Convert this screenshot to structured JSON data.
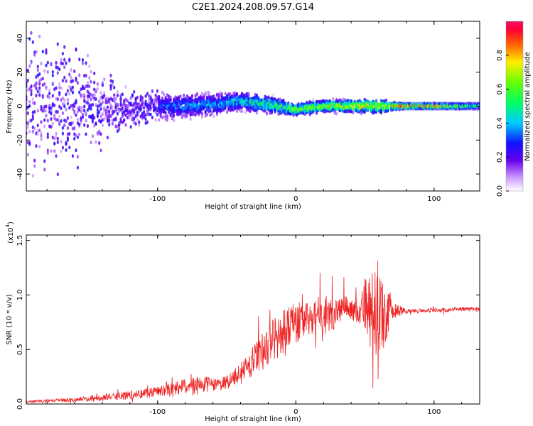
{
  "figure_title": "C2E1.2024.208.09.57.G14",
  "colors": {
    "snr_line": "#ee2222",
    "spectrum_core": "#cc1122"
  },
  "chart_data": [
    {
      "type": "heatmap",
      "panel": "spectrogram",
      "xlabel": "Height of straight line (km)",
      "ylabel": "Frequency (Hz)",
      "xlim": [
        -195,
        133
      ],
      "ylim": [
        -50,
        50
      ],
      "xticks": [
        -100,
        0,
        100
      ],
      "xtick_labels": [
        "-100",
        "0",
        "100"
      ],
      "yticks": [
        -40,
        -20,
        0,
        20,
        40
      ],
      "ytick_labels": [
        "-40",
        "-20",
        "0",
        "20",
        "40"
      ],
      "colorbar": {
        "label": "Normalized spectral amplitude",
        "range": [
          0,
          1
        ],
        "ticks": [
          0,
          0.2,
          0.4,
          0.6,
          0.8
        ],
        "tick_labels": [
          "0.0",
          "0.2",
          "0.4",
          "0.6",
          "0.8"
        ]
      },
      "description_points": {
        "height_km": [
          -195,
          -160,
          -120,
          -100,
          -80,
          -60,
          -40,
          -20,
          0,
          20,
          40,
          60,
          70,
          80,
          100,
          120,
          133
        ],
        "center_frequency_hz": [
          0,
          0,
          -2,
          0,
          0,
          1,
          3,
          1,
          -2,
          0,
          0,
          0,
          0,
          0,
          0,
          0,
          0
        ],
        "spread_hz": [
          50,
          45,
          12,
          12,
          10,
          9,
          8,
          7,
          5,
          5,
          5,
          6,
          3,
          2,
          2,
          2,
          2
        ],
        "peak_amplitude": [
          0.15,
          0.2,
          0.3,
          0.35,
          0.4,
          0.45,
          0.5,
          0.6,
          0.7,
          0.75,
          0.8,
          0.85,
          0.9,
          0.9,
          0.9,
          0.6,
          0.5
        ]
      }
    },
    {
      "type": "line",
      "panel": "snr",
      "xlabel": "Height of straight line (km)",
      "ylabel": "SNR (10 * v/v)",
      "scale_label": "(x10",
      "scale_exponent": "4",
      "scale_suffix": ")",
      "xlim": [
        -195,
        133
      ],
      "ylim": [
        0,
        1.55
      ],
      "xticks": [
        -100,
        0,
        100
      ],
      "xtick_labels": [
        "-100",
        "0",
        "100"
      ],
      "yticks": [
        0,
        0.5,
        1.0,
        1.5
      ],
      "ytick_labels": [
        "0.0",
        "0.5",
        "1.0",
        "1.5"
      ],
      "series": [
        {
          "x": [
            -195,
            -180,
            -160,
            -140,
            -120,
            -100,
            -80,
            -70,
            -60,
            -50,
            -40,
            -30,
            -20,
            -10,
            0,
            10,
            20,
            30,
            40,
            45,
            50,
            55,
            60,
            65,
            70,
            80,
            90,
            100,
            110,
            120,
            133
          ],
          "y": [
            0.02,
            0.03,
            0.04,
            0.06,
            0.08,
            0.12,
            0.16,
            0.17,
            0.18,
            0.2,
            0.28,
            0.4,
            0.55,
            0.65,
            0.75,
            0.78,
            0.82,
            0.85,
            0.88,
            0.82,
            0.9,
            0.85,
            0.88,
            0.86,
            0.86,
            0.85,
            0.86,
            0.86,
            0.86,
            0.87,
            0.87
          ],
          "noise_amplitude": [
            0.01,
            0.015,
            0.02,
            0.03,
            0.04,
            0.05,
            0.07,
            0.09,
            0.06,
            0.07,
            0.1,
            0.15,
            0.2,
            0.2,
            0.2,
            0.15,
            0.2,
            0.15,
            0.1,
            0.1,
            0.25,
            0.4,
            0.45,
            0.35,
            0.08,
            0.02,
            0.02,
            0.02,
            0.02,
            0.02,
            0.02
          ]
        }
      ]
    }
  ]
}
